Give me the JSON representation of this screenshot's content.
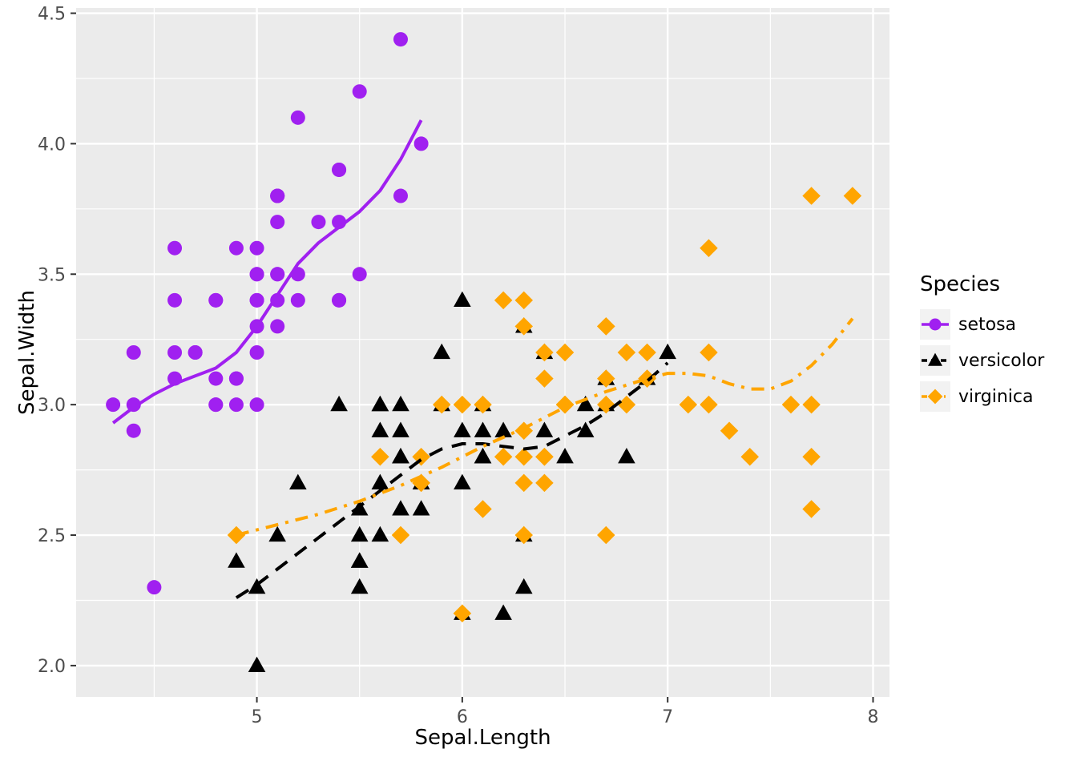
{
  "chart_data": {
    "type": "scatter",
    "title": "",
    "xlabel": "Sepal.Length",
    "ylabel": "Sepal.Width",
    "xlim": [
      4.12,
      8.08
    ],
    "ylim": [
      1.88,
      4.52
    ],
    "x_ticks": [
      5,
      6,
      7,
      8
    ],
    "x_tick_labels": [
      "5",
      "6",
      "7",
      "8"
    ],
    "x_minor": [
      4.5,
      5.5,
      6.5,
      7.5
    ],
    "y_ticks": [
      2.0,
      2.5,
      3.0,
      3.5,
      4.0,
      4.5
    ],
    "y_tick_labels": [
      "2.0",
      "2.5",
      "3.0",
      "3.5",
      "4.0",
      "4.5"
    ],
    "y_minor": [
      2.25,
      2.75,
      3.25,
      3.75,
      4.25
    ],
    "grid": true,
    "panel_bg": "#EBEBEB",
    "grid_color": "#FFFFFF",
    "tick_text_color": "#4D4D4D",
    "tick_mark_color": "#333333",
    "legend": {
      "title": "Species",
      "position": "right",
      "key_bg": "#F2F2F2",
      "entries": [
        "setosa",
        "versicolor",
        "virginica"
      ]
    },
    "series": [
      {
        "name": "setosa",
        "color": "#A020F0",
        "shape": "circle",
        "linetype": "solid",
        "points": [
          [
            5.1,
            3.5
          ],
          [
            4.9,
            3.0
          ],
          [
            4.7,
            3.2
          ],
          [
            4.6,
            3.1
          ],
          [
            5.0,
            3.6
          ],
          [
            5.4,
            3.9
          ],
          [
            4.6,
            3.4
          ],
          [
            5.0,
            3.4
          ],
          [
            4.4,
            2.9
          ],
          [
            4.9,
            3.1
          ],
          [
            5.4,
            3.7
          ],
          [
            4.8,
            3.4
          ],
          [
            4.8,
            3.0
          ],
          [
            4.3,
            3.0
          ],
          [
            5.8,
            4.0
          ],
          [
            5.7,
            4.4
          ],
          [
            5.4,
            3.9
          ],
          [
            5.1,
            3.5
          ],
          [
            5.7,
            3.8
          ],
          [
            5.1,
            3.8
          ],
          [
            5.4,
            3.4
          ],
          [
            5.1,
            3.7
          ],
          [
            4.6,
            3.6
          ],
          [
            5.1,
            3.3
          ],
          [
            4.8,
            3.4
          ],
          [
            5.0,
            3.0
          ],
          [
            5.0,
            3.4
          ],
          [
            5.2,
            3.5
          ],
          [
            5.2,
            3.4
          ],
          [
            4.7,
            3.2
          ],
          [
            4.8,
            3.1
          ],
          [
            5.4,
            3.4
          ],
          [
            5.2,
            4.1
          ],
          [
            5.5,
            4.2
          ],
          [
            4.9,
            3.1
          ],
          [
            5.0,
            3.2
          ],
          [
            5.5,
            3.5
          ],
          [
            4.9,
            3.6
          ],
          [
            4.4,
            3.0
          ],
          [
            5.1,
            3.4
          ],
          [
            5.0,
            3.5
          ],
          [
            4.5,
            2.3
          ],
          [
            4.4,
            3.2
          ],
          [
            5.0,
            3.5
          ],
          [
            5.1,
            3.8
          ],
          [
            4.8,
            3.0
          ],
          [
            5.1,
            3.8
          ],
          [
            4.6,
            3.2
          ],
          [
            5.3,
            3.7
          ],
          [
            5.0,
            3.3
          ]
        ],
        "smooth": [
          [
            4.3,
            2.93
          ],
          [
            4.4,
            2.99
          ],
          [
            4.5,
            3.04
          ],
          [
            4.6,
            3.08
          ],
          [
            4.7,
            3.11
          ],
          [
            4.8,
            3.14
          ],
          [
            4.9,
            3.2
          ],
          [
            5.0,
            3.3
          ],
          [
            5.1,
            3.42
          ],
          [
            5.2,
            3.54
          ],
          [
            5.3,
            3.62
          ],
          [
            5.4,
            3.68
          ],
          [
            5.5,
            3.74
          ],
          [
            5.6,
            3.82
          ],
          [
            5.7,
            3.94
          ],
          [
            5.8,
            4.09
          ]
        ]
      },
      {
        "name": "versicolor",
        "color": "#000000",
        "shape": "triangle",
        "linetype": "dashed",
        "points": [
          [
            7.0,
            3.2
          ],
          [
            6.4,
            3.2
          ],
          [
            6.9,
            3.1
          ],
          [
            5.5,
            2.3
          ],
          [
            6.5,
            2.8
          ],
          [
            5.7,
            2.8
          ],
          [
            6.3,
            3.3
          ],
          [
            4.9,
            2.4
          ],
          [
            6.6,
            2.9
          ],
          [
            5.2,
            2.7
          ],
          [
            5.0,
            2.0
          ],
          [
            5.9,
            3.0
          ],
          [
            6.0,
            2.2
          ],
          [
            6.1,
            2.9
          ],
          [
            5.6,
            2.9
          ],
          [
            6.7,
            3.1
          ],
          [
            5.6,
            3.0
          ],
          [
            5.8,
            2.7
          ],
          [
            6.2,
            2.2
          ],
          [
            5.6,
            2.5
          ],
          [
            5.9,
            3.2
          ],
          [
            6.1,
            2.8
          ],
          [
            6.3,
            2.5
          ],
          [
            6.1,
            2.8
          ],
          [
            6.4,
            2.9
          ],
          [
            6.6,
            3.0
          ],
          [
            6.8,
            2.8
          ],
          [
            6.7,
            3.0
          ],
          [
            6.0,
            2.9
          ],
          [
            5.7,
            2.6
          ],
          [
            5.5,
            2.4
          ],
          [
            5.5,
            2.4
          ],
          [
            5.8,
            2.7
          ],
          [
            6.0,
            2.7
          ],
          [
            5.4,
            3.0
          ],
          [
            6.0,
            3.4
          ],
          [
            6.7,
            3.1
          ],
          [
            6.3,
            2.3
          ],
          [
            5.6,
            3.0
          ],
          [
            5.5,
            2.5
          ],
          [
            5.5,
            2.6
          ],
          [
            6.1,
            3.0
          ],
          [
            5.8,
            2.6
          ],
          [
            5.0,
            2.3
          ],
          [
            5.6,
            2.7
          ],
          [
            5.7,
            3.0
          ],
          [
            5.7,
            2.9
          ],
          [
            6.2,
            2.9
          ],
          [
            5.1,
            2.5
          ],
          [
            5.7,
            2.8
          ]
        ],
        "smooth": [
          [
            4.9,
            2.26
          ],
          [
            5.0,
            2.31
          ],
          [
            5.1,
            2.37
          ],
          [
            5.2,
            2.43
          ],
          [
            5.3,
            2.49
          ],
          [
            5.4,
            2.55
          ],
          [
            5.5,
            2.61
          ],
          [
            5.6,
            2.67
          ],
          [
            5.7,
            2.73
          ],
          [
            5.8,
            2.79
          ],
          [
            5.9,
            2.83
          ],
          [
            6.0,
            2.85
          ],
          [
            6.1,
            2.85
          ],
          [
            6.2,
            2.84
          ],
          [
            6.3,
            2.83
          ],
          [
            6.4,
            2.84
          ],
          [
            6.5,
            2.88
          ],
          [
            6.6,
            2.92
          ],
          [
            6.7,
            2.97
          ],
          [
            6.8,
            3.03
          ],
          [
            6.9,
            3.09
          ],
          [
            7.0,
            3.16
          ]
        ]
      },
      {
        "name": "virginica",
        "color": "#FFA500",
        "shape": "diamond",
        "linetype": "dashdot",
        "points": [
          [
            6.3,
            3.3
          ],
          [
            5.8,
            2.7
          ],
          [
            7.1,
            3.0
          ],
          [
            6.3,
            2.9
          ],
          [
            6.5,
            3.0
          ],
          [
            7.6,
            3.0
          ],
          [
            4.9,
            2.5
          ],
          [
            7.3,
            2.9
          ],
          [
            6.7,
            2.5
          ],
          [
            7.2,
            3.6
          ],
          [
            6.5,
            3.2
          ],
          [
            6.4,
            2.7
          ],
          [
            6.8,
            3.0
          ],
          [
            5.7,
            2.5
          ],
          [
            5.8,
            2.8
          ],
          [
            6.4,
            3.2
          ],
          [
            6.5,
            3.0
          ],
          [
            7.7,
            3.8
          ],
          [
            7.7,
            2.6
          ],
          [
            6.0,
            2.2
          ],
          [
            6.9,
            3.2
          ],
          [
            5.6,
            2.8
          ],
          [
            7.7,
            2.8
          ],
          [
            6.3,
            2.7
          ],
          [
            6.7,
            3.3
          ],
          [
            7.2,
            3.2
          ],
          [
            6.2,
            2.8
          ],
          [
            6.1,
            3.0
          ],
          [
            6.4,
            2.8
          ],
          [
            7.2,
            3.0
          ],
          [
            7.4,
            2.8
          ],
          [
            7.9,
            3.8
          ],
          [
            6.4,
            2.8
          ],
          [
            6.3,
            2.8
          ],
          [
            6.1,
            2.6
          ],
          [
            7.7,
            3.0
          ],
          [
            6.3,
            3.4
          ],
          [
            6.4,
            3.1
          ],
          [
            6.0,
            3.0
          ],
          [
            6.9,
            3.1
          ],
          [
            6.7,
            3.1
          ],
          [
            6.9,
            3.1
          ],
          [
            5.8,
            2.7
          ],
          [
            6.8,
            3.2
          ],
          [
            6.7,
            3.3
          ],
          [
            6.7,
            3.0
          ],
          [
            6.3,
            2.5
          ],
          [
            6.5,
            3.0
          ],
          [
            6.2,
            3.4
          ],
          [
            5.9,
            3.0
          ]
        ],
        "smooth": [
          [
            4.9,
            2.5
          ],
          [
            5.1,
            2.54
          ],
          [
            5.3,
            2.58
          ],
          [
            5.5,
            2.63
          ],
          [
            5.7,
            2.69
          ],
          [
            5.9,
            2.76
          ],
          [
            6.1,
            2.84
          ],
          [
            6.3,
            2.91
          ],
          [
            6.5,
            2.99
          ],
          [
            6.7,
            3.05
          ],
          [
            6.9,
            3.1
          ],
          [
            7.0,
            3.12
          ],
          [
            7.1,
            3.12
          ],
          [
            7.2,
            3.11
          ],
          [
            7.3,
            3.08
          ],
          [
            7.4,
            3.06
          ],
          [
            7.5,
            3.06
          ],
          [
            7.6,
            3.09
          ],
          [
            7.7,
            3.15
          ],
          [
            7.8,
            3.23
          ],
          [
            7.9,
            3.33
          ]
        ]
      }
    ]
  }
}
